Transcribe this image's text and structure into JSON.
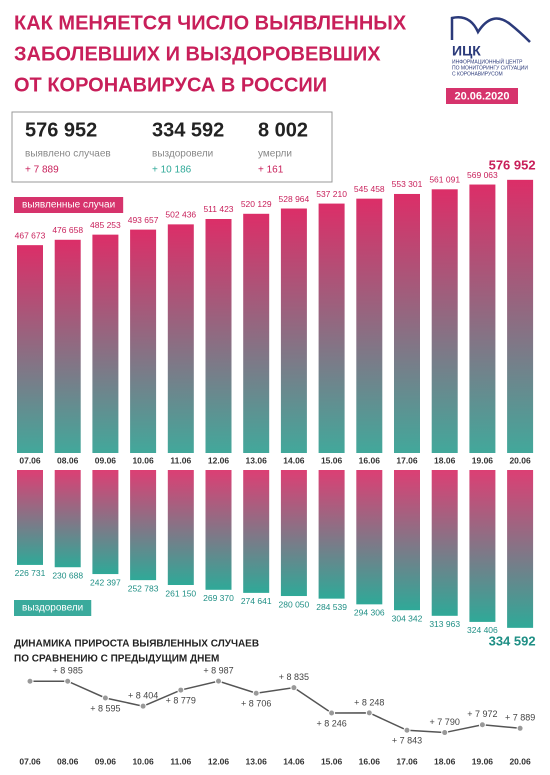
{
  "header": {
    "title_lines": [
      "КАК МЕНЯЕТСЯ ЧИСЛО ВЫЯВЛЕННЫХ",
      "ЗАБОЛЕВШИХ И ВЫЗДОРОВЕВШИХ",
      "ОТ КОРОНАВИРУСА В РОССИИ"
    ],
    "logo": "ИЦК",
    "logo_lines": [
      "ИНФОРМАЦИОННЫЙ ЦЕНТР",
      "ПО МОНИТОРИНГУ СИТУАЦИИ",
      "С КОРОНАВИРУСОМ"
    ],
    "date": "20.06.2020"
  },
  "stats": [
    {
      "value": "576 952",
      "label": "выявлено случаев",
      "delta": "+ 7 889"
    },
    {
      "value": "334 592",
      "label": "выздоровели",
      "delta": "+ 10 186"
    },
    {
      "value": "8 002",
      "label": "умерли",
      "delta": "+ 161"
    }
  ],
  "chart_data": [
    {
      "type": "bar",
      "label": "выявленные случаи",
      "label_color": "#d6336c",
      "categories": [
        "07.06",
        "08.06",
        "09.06",
        "10.06",
        "11.06",
        "12.06",
        "13.06",
        "14.06",
        "15.06",
        "16.06",
        "17.06",
        "18.06",
        "19.06",
        "20.06"
      ],
      "values": [
        467673,
        476658,
        485253,
        493657,
        502436,
        511423,
        520129,
        528964,
        537210,
        545458,
        553301,
        561091,
        569063,
        576952
      ],
      "value_labels": [
        "467 673",
        "476 658",
        "485 253",
        "493 657",
        "502 436",
        "511 423",
        "520 129",
        "528 964",
        "537 210",
        "545 458",
        "553 301",
        "561 091",
        "569 063",
        "576 952"
      ],
      "color_top": "#dc2e68",
      "color_bottom": "#42a89b",
      "ylim": [
        120000,
        580000
      ]
    },
    {
      "type": "bar",
      "label": "выздоровели",
      "label_color": "#3aaa9c",
      "y_inverted": true,
      "values": [
        226731,
        230688,
        242397,
        252783,
        261150,
        269370,
        274641,
        280050,
        284539,
        294306,
        304342,
        313963,
        324406,
        334592
      ],
      "value_labels": [
        "226 731",
        "230 688",
        "242 397",
        "252 783",
        "261 150",
        "269 370",
        "274 641",
        "280 050",
        "284 539",
        "294 306",
        "304 342",
        "313 963",
        "324 406",
        "334 592"
      ],
      "color_top": "#dc3f74",
      "color_bottom": "#2fa998",
      "ylim": [
        64000,
        340000
      ]
    },
    {
      "type": "line",
      "title": "ДИНАМИКА ПРИРОСТА ВЫЯВЛЕННЫХ СЛУЧАЕВ",
      "subtitle": "ПО СРАВНЕНИЮ С ПРЕДЫДУЩИМ ДНЕМ",
      "categories": [
        "07.06",
        "08.06",
        "09.06",
        "10.06",
        "11.06",
        "12.06",
        "13.06",
        "14.06",
        "15.06",
        "16.06",
        "17.06",
        "18.06",
        "19.06",
        "20.06"
      ],
      "values": [
        8984,
        8985,
        8595,
        8404,
        8779,
        8987,
        8706,
        8835,
        8246,
        8248,
        7843,
        7790,
        7972,
        7889
      ],
      "value_labels": [
        null,
        "+ 8 985",
        "+ 8 595",
        "+ 8 404",
        "+ 8 779",
        "+ 8 987",
        "+ 8 706",
        "+ 8 835",
        "+ 8 246",
        "+ 8 248",
        "+ 7 843",
        "+ 7 790",
        "+ 7 972",
        "+ 7 889"
      ],
      "color": "#555555",
      "ylim": [
        7500,
        9200
      ]
    }
  ]
}
